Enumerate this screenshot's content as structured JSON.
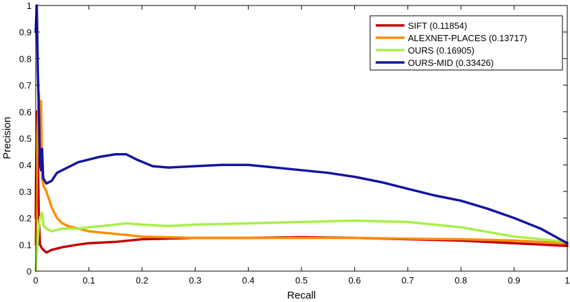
{
  "chart_data": {
    "type": "line",
    "xlabel": "Recall",
    "ylabel": "Precision",
    "xlim": [
      0,
      1
    ],
    "ylim": [
      0,
      1
    ],
    "xticks": [
      "0",
      "0.1",
      "0.2",
      "0.3",
      "0.4",
      "0.5",
      "0.6",
      "0.7",
      "0.8",
      "0.9",
      "1"
    ],
    "yticks": [
      "0",
      "0.1",
      "0.2",
      "0.3",
      "0.4",
      "0.5",
      "0.6",
      "0.7",
      "0.8",
      "0.9",
      "1"
    ],
    "grid": false,
    "legend_position": "top-right",
    "series": [
      {
        "name": "SIFT (0.11854)",
        "color": "#c00000",
        "points": [
          [
            0,
            0.2
          ],
          [
            0.002,
            0.6
          ],
          [
            0.004,
            0.42
          ],
          [
            0.006,
            0.2
          ],
          [
            0.008,
            0.1
          ],
          [
            0.012,
            0.085
          ],
          [
            0.02,
            0.07
          ],
          [
            0.03,
            0.08
          ],
          [
            0.05,
            0.09
          ],
          [
            0.08,
            0.1
          ],
          [
            0.1,
            0.105
          ],
          [
            0.15,
            0.11
          ],
          [
            0.2,
            0.12
          ],
          [
            0.3,
            0.125
          ],
          [
            0.4,
            0.125
          ],
          [
            0.5,
            0.128
          ],
          [
            0.6,
            0.125
          ],
          [
            0.7,
            0.12
          ],
          [
            0.8,
            0.115
          ],
          [
            0.9,
            0.105
          ],
          [
            0.95,
            0.1
          ],
          [
            1,
            0.095
          ]
        ]
      },
      {
        "name": "ALEXNET-PLACES (0.13717)",
        "color": "#ff8c00",
        "points": [
          [
            0,
            0.1
          ],
          [
            0.003,
            0.5
          ],
          [
            0.006,
            0.67
          ],
          [
            0.008,
            0.55
          ],
          [
            0.01,
            0.64
          ],
          [
            0.012,
            0.35
          ],
          [
            0.015,
            0.32
          ],
          [
            0.02,
            0.3
          ],
          [
            0.03,
            0.24
          ],
          [
            0.04,
            0.2
          ],
          [
            0.05,
            0.18
          ],
          [
            0.06,
            0.17
          ],
          [
            0.08,
            0.16
          ],
          [
            0.1,
            0.15
          ],
          [
            0.15,
            0.14
          ],
          [
            0.2,
            0.13
          ],
          [
            0.3,
            0.125
          ],
          [
            0.4,
            0.125
          ],
          [
            0.5,
            0.125
          ],
          [
            0.6,
            0.125
          ],
          [
            0.7,
            0.122
          ],
          [
            0.8,
            0.12
          ],
          [
            0.9,
            0.115
          ],
          [
            1,
            0.105
          ]
        ]
      },
      {
        "name": "OURS (0.16905)",
        "color": "#a6f04a",
        "points": [
          [
            0,
            0
          ],
          [
            0.003,
            0.1
          ],
          [
            0.005,
            0.15
          ],
          [
            0.008,
            0.2
          ],
          [
            0.012,
            0.22
          ],
          [
            0.015,
            0.17
          ],
          [
            0.02,
            0.16
          ],
          [
            0.03,
            0.15
          ],
          [
            0.05,
            0.16
          ],
          [
            0.08,
            0.16
          ],
          [
            0.1,
            0.165
          ],
          [
            0.15,
            0.175
          ],
          [
            0.17,
            0.18
          ],
          [
            0.2,
            0.175
          ],
          [
            0.25,
            0.17
          ],
          [
            0.3,
            0.175
          ],
          [
            0.4,
            0.18
          ],
          [
            0.5,
            0.185
          ],
          [
            0.6,
            0.19
          ],
          [
            0.7,
            0.185
          ],
          [
            0.8,
            0.165
          ],
          [
            0.9,
            0.13
          ],
          [
            1,
            0.11
          ]
        ]
      },
      {
        "name": "OURS-MID (0.33426)",
        "color": "#1414a0",
        "points": [
          [
            0,
            0.9
          ],
          [
            0.002,
            1
          ],
          [
            0.004,
            0.75
          ],
          [
            0.006,
            0.6
          ],
          [
            0.008,
            0.4
          ],
          [
            0.01,
            0.38
          ],
          [
            0.012,
            0.46
          ],
          [
            0.014,
            0.35
          ],
          [
            0.02,
            0.33
          ],
          [
            0.03,
            0.34
          ],
          [
            0.04,
            0.37
          ],
          [
            0.05,
            0.38
          ],
          [
            0.06,
            0.39
          ],
          [
            0.08,
            0.41
          ],
          [
            0.1,
            0.42
          ],
          [
            0.12,
            0.43
          ],
          [
            0.15,
            0.44
          ],
          [
            0.17,
            0.44
          ],
          [
            0.19,
            0.42
          ],
          [
            0.22,
            0.395
          ],
          [
            0.25,
            0.39
          ],
          [
            0.3,
            0.395
          ],
          [
            0.35,
            0.4
          ],
          [
            0.4,
            0.4
          ],
          [
            0.45,
            0.39
          ],
          [
            0.5,
            0.38
          ],
          [
            0.55,
            0.37
          ],
          [
            0.6,
            0.355
          ],
          [
            0.65,
            0.335
          ],
          [
            0.7,
            0.31
          ],
          [
            0.75,
            0.285
          ],
          [
            0.8,
            0.265
          ],
          [
            0.85,
            0.235
          ],
          [
            0.9,
            0.2
          ],
          [
            0.95,
            0.16
          ],
          [
            1,
            0.105
          ]
        ]
      }
    ]
  }
}
